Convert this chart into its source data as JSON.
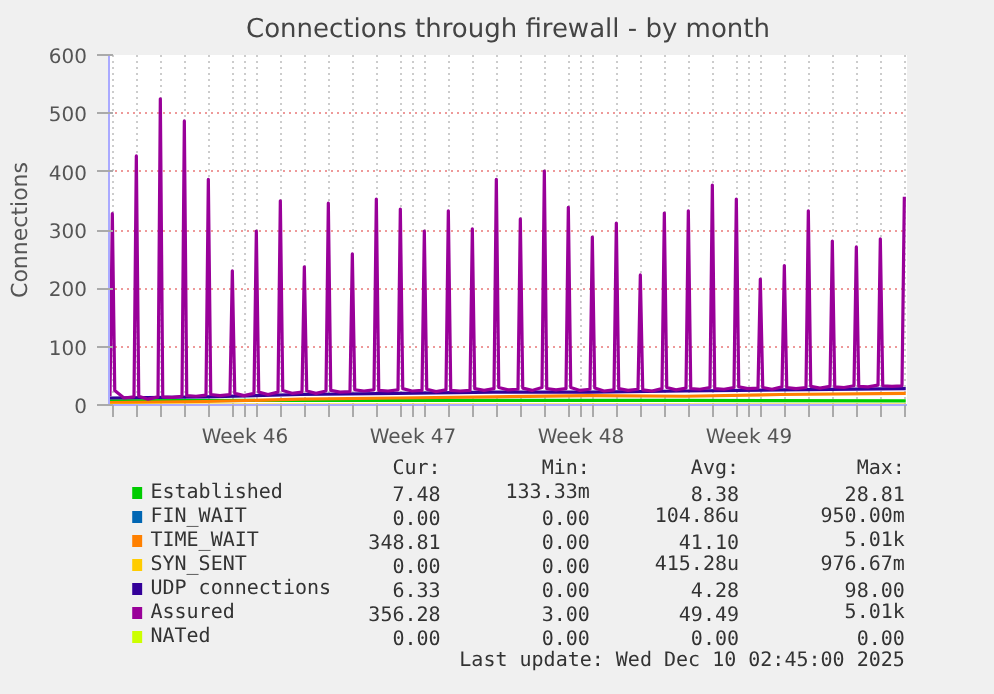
{
  "chart_data": {
    "type": "line",
    "title": "Connections through firewall - by month",
    "ylabel": "Connections",
    "xlim": [
      "2025-11-06T21:00",
      "2025-12-10T03:00"
    ],
    "ylim": [
      0,
      600
    ],
    "yticks": [
      0,
      100,
      200,
      300,
      400,
      500,
      600
    ],
    "xticks": [
      {
        "value": "2025-11-07T00:00",
        "label": null
      },
      {
        "value": "2025-11-08T00:00",
        "label": null
      },
      {
        "value": "2025-11-09T00:00",
        "label": null
      },
      {
        "value": "2025-11-10T00:00",
        "label": null
      },
      {
        "value": "2025-11-11T00:00",
        "label": null
      },
      {
        "value": "2025-11-12T00:00",
        "label": null
      },
      {
        "value": "2025-11-12T13:00",
        "label": "Week 46"
      },
      {
        "value": "2025-11-13T00:00",
        "label": null
      },
      {
        "value": "2025-11-14T00:00",
        "label": null
      },
      {
        "value": "2025-11-15T00:00",
        "label": null
      },
      {
        "value": "2025-11-16T00:00",
        "label": null
      },
      {
        "value": "2025-11-17T00:00",
        "label": null
      },
      {
        "value": "2025-11-18T00:00",
        "label": null
      },
      {
        "value": "2025-11-19T00:00",
        "label": null
      },
      {
        "value": "2025-11-19T13:00",
        "label": "Week 47"
      },
      {
        "value": "2025-11-20T00:00",
        "label": null
      },
      {
        "value": "2025-11-21T00:00",
        "label": null
      },
      {
        "value": "2025-11-22T00:00",
        "label": null
      },
      {
        "value": "2025-11-23T00:00",
        "label": null
      },
      {
        "value": "2025-11-24T00:00",
        "label": null
      },
      {
        "value": "2025-11-25T00:00",
        "label": null
      },
      {
        "value": "2025-11-26T00:00",
        "label": null
      },
      {
        "value": "2025-11-26T13:00",
        "label": "Week 48"
      },
      {
        "value": "2025-11-27T00:00",
        "label": null
      },
      {
        "value": "2025-11-28T00:00",
        "label": null
      },
      {
        "value": "2025-11-29T00:00",
        "label": null
      },
      {
        "value": "2025-11-30T00:00",
        "label": null
      },
      {
        "value": "2025-12-01T00:00",
        "label": null
      },
      {
        "value": "2025-12-02T00:00",
        "label": null
      },
      {
        "value": "2025-12-03T00:00",
        "label": null
      },
      {
        "value": "2025-12-03T13:00",
        "label": "Week 49"
      },
      {
        "value": "2025-12-04T00:00",
        "label": null
      },
      {
        "value": "2025-12-05T00:00",
        "label": null
      },
      {
        "value": "2025-12-06T00:00",
        "label": null
      },
      {
        "value": "2025-12-07T00:00",
        "label": null
      },
      {
        "value": "2025-12-08T00:00",
        "label": null
      },
      {
        "value": "2025-12-09T00:00",
        "label": null
      },
      {
        "value": "2025-12-10T00:00",
        "label": null
      }
    ],
    "grid": true,
    "legend": "bottom",
    "line_style": "solid",
    "marker": "none",
    "series": [
      {
        "name": "Established",
        "color": "#00cc00",
        "x": [
          "2025-11-06T21:00",
          "2025-11-14T21:00",
          "2025-11-22T21:00",
          "2025-11-30T21:00",
          "2025-12-10T01:45"
        ],
        "values": [
          7,
          8,
          8,
          8,
          7
        ]
      },
      {
        "name": "FIN_WAIT",
        "color": "#0066b3"
      },
      {
        "name": "TIME_WAIT",
        "color": "#ff8000",
        "x": [
          "2025-11-06T21:00",
          "2025-11-10T21:00",
          "2025-11-14T21:00",
          "2025-11-18T21:00",
          "2025-11-22T21:00",
          "2025-11-26T21:00",
          "2025-11-30T21:00",
          "2025-12-04T21:00",
          "2025-12-10T01:45"
        ],
        "values": [
          4,
          6,
          10,
          12,
          14,
          16,
          15,
          18,
          20
        ]
      },
      {
        "name": "SYN_SENT",
        "color": "#ffcc00",
        "x": [
          "2025-11-06T21:00",
          "2025-12-10T01:45"
        ],
        "values": [
          0,
          0
        ]
      },
      {
        "name": "UDP connections",
        "color": "#330099",
        "x": [
          "2025-11-06T21:00",
          "2025-11-10T21:00",
          "2025-11-14T21:00",
          "2025-11-18T21:00",
          "2025-11-22T21:00",
          "2025-11-26T21:00",
          "2025-11-30T21:00",
          "2025-12-04T21:00",
          "2025-12-10T01:45"
        ],
        "values": [
          12,
          14,
          18,
          20,
          22,
          22,
          24,
          26,
          28
        ]
      },
      {
        "name": "Assured",
        "color": "#990099",
        "x": [
          "2025-11-06T22:00",
          "2025-11-07T00:20",
          "2025-11-07T02:45",
          "2025-11-07T12:00",
          "2025-11-07T22:00",
          "2025-11-08T00:20",
          "2025-11-08T02:45",
          "2025-11-08T12:00",
          "2025-11-08T22:00",
          "2025-11-09T00:20",
          "2025-11-09T02:45",
          "2025-11-09T12:00",
          "2025-11-09T22:00",
          "2025-11-10T00:20",
          "2025-11-10T02:45",
          "2025-11-10T12:00",
          "2025-11-10T22:00",
          "2025-11-11T00:20",
          "2025-11-11T02:45",
          "2025-11-11T12:00",
          "2025-11-11T22:00",
          "2025-11-12T00:20",
          "2025-11-12T02:45",
          "2025-11-12T12:00",
          "2025-11-12T22:00",
          "2025-11-13T00:20",
          "2025-11-13T02:45",
          "2025-11-13T12:00",
          "2025-11-13T22:00",
          "2025-11-14T00:20",
          "2025-11-14T02:45",
          "2025-11-14T12:00",
          "2025-11-14T22:00",
          "2025-11-15T00:20",
          "2025-11-15T02:45",
          "2025-11-15T12:00",
          "2025-11-15T22:00",
          "2025-11-16T00:20",
          "2025-11-16T02:45",
          "2025-11-16T12:00",
          "2025-11-16T22:00",
          "2025-11-17T00:20",
          "2025-11-17T02:45",
          "2025-11-17T12:00",
          "2025-11-17T22:00",
          "2025-11-18T00:20",
          "2025-11-18T02:45",
          "2025-11-18T12:00",
          "2025-11-18T22:00",
          "2025-11-19T00:20",
          "2025-11-19T02:45",
          "2025-11-19T12:00",
          "2025-11-19T22:00",
          "2025-11-20T00:20",
          "2025-11-20T02:45",
          "2025-11-20T12:00",
          "2025-11-20T22:00",
          "2025-11-21T00:20",
          "2025-11-21T02:45",
          "2025-11-21T12:00",
          "2025-11-21T22:00",
          "2025-11-22T00:20",
          "2025-11-22T02:45",
          "2025-11-22T12:00",
          "2025-11-22T22:00",
          "2025-11-23T00:20",
          "2025-11-23T02:45",
          "2025-11-23T12:00",
          "2025-11-23T22:00",
          "2025-11-24T00:20",
          "2025-11-24T02:45",
          "2025-11-24T12:00",
          "2025-11-24T22:00",
          "2025-11-25T00:20",
          "2025-11-25T02:45",
          "2025-11-25T12:00",
          "2025-11-25T22:00",
          "2025-11-26T00:20",
          "2025-11-26T02:45",
          "2025-11-26T12:00",
          "2025-11-26T22:00",
          "2025-11-27T00:20",
          "2025-11-27T02:45",
          "2025-11-27T12:00",
          "2025-11-27T22:00",
          "2025-11-28T00:20",
          "2025-11-28T02:45",
          "2025-11-28T12:00",
          "2025-11-28T22:00",
          "2025-11-29T00:20",
          "2025-11-29T02:45",
          "2025-11-29T12:00",
          "2025-11-29T22:00",
          "2025-11-30T00:20",
          "2025-11-30T02:45",
          "2025-11-30T12:00",
          "2025-11-30T22:00",
          "2025-12-01T00:20",
          "2025-12-01T02:45",
          "2025-12-01T12:00",
          "2025-12-01T22:00",
          "2025-12-02T00:20",
          "2025-12-02T02:45",
          "2025-12-02T12:00",
          "2025-12-02T22:00",
          "2025-12-03T00:20",
          "2025-12-03T02:45",
          "2025-12-03T12:00",
          "2025-12-03T22:00",
          "2025-12-04T00:20",
          "2025-12-04T02:45",
          "2025-12-04T12:00",
          "2025-12-04T22:00",
          "2025-12-05T00:20",
          "2025-12-05T02:45",
          "2025-12-05T12:00",
          "2025-12-05T22:00",
          "2025-12-06T00:20",
          "2025-12-06T02:45",
          "2025-12-06T12:00",
          "2025-12-06T22:00",
          "2025-12-07T00:20",
          "2025-12-07T02:45",
          "2025-12-07T12:00",
          "2025-12-07T22:00",
          "2025-12-08T00:20",
          "2025-12-08T02:45",
          "2025-12-08T12:00",
          "2025-12-08T22:00",
          "2025-12-09T00:20",
          "2025-12-09T02:45",
          "2025-12-09T12:00",
          "2025-12-09T22:00",
          "2025-12-10T00:20"
        ],
        "values": [
          15,
          328,
          25,
          12,
          14,
          427,
          15,
          10,
          14,
          525,
          14,
          13,
          15,
          487,
          16,
          15,
          17,
          387,
          18,
          16,
          18,
          230,
          20,
          16,
          20,
          298,
          22,
          18,
          22,
          350,
          25,
          20,
          22,
          237,
          24,
          20,
          24,
          346,
          25,
          22,
          23,
          259,
          26,
          24,
          26,
          353,
          25,
          24,
          26,
          336,
          28,
          24,
          25,
          298,
          27,
          23,
          26,
          333,
          25,
          24,
          25,
          302,
          28,
          25,
          28,
          387,
          30,
          26,
          27,
          319,
          29,
          25,
          30,
          401,
          28,
          26,
          28,
          339,
          30,
          25,
          27,
          288,
          29,
          24,
          26,
          312,
          28,
          25,
          27,
          223,
          26,
          24,
          28,
          329,
          30,
          26,
          29,
          333,
          28,
          27,
          30,
          377,
          28,
          27,
          30,
          353,
          31,
          28,
          29,
          216,
          30,
          27,
          31,
          239,
          30,
          28,
          30,
          333,
          32,
          29,
          32,
          281,
          31,
          30,
          33,
          271,
          32,
          31,
          34,
          285,
          33,
          32,
          33,
          357
        ]
      },
      {
        "name": "NATed",
        "color": "#ccff00"
      }
    ],
    "annotations": [
      "Cur:",
      "Min:",
      "Avg:",
      "Max:",
      "7.48",
      "133.33m",
      "8.38",
      "28.81",
      "0.00",
      "0.00",
      "104.86u",
      "950.00m",
      "348.81",
      "0.00",
      "41.10",
      "5.01k",
      "0.00",
      "0.00",
      "415.28u",
      "976.67m",
      "6.33",
      "0.00",
      "4.28",
      "98.00",
      "356.28",
      "3.00",
      "49.49",
      "5.01k",
      "0.00",
      "0.00",
      "0.00",
      "0.00",
      "Last update: Wed Dec 10 02:45:00 2025"
    ]
  }
}
